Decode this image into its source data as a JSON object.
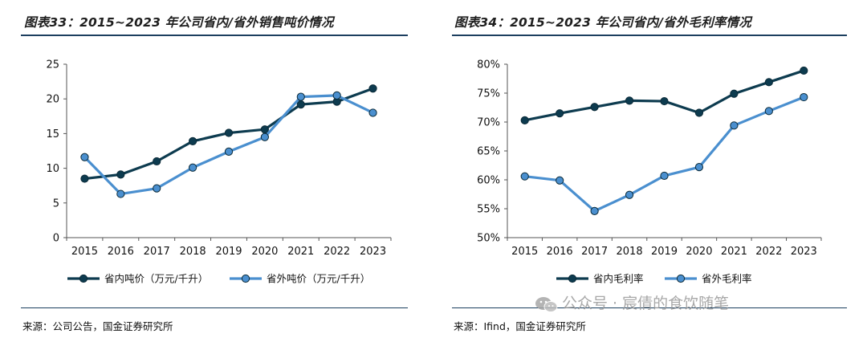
{
  "left": {
    "title": "图表33：2015~2023 年公司省内/省外销售吨价情况",
    "source": "来源：公司公告，国金证券研究所"
  },
  "right": {
    "title": "图表34：2015~2023 年公司省内/省外毛利率情况",
    "source": "来源：Ifind，国金证券研究所"
  },
  "watermark": "公众号 · 宸倩的食饮随笔",
  "colors": {
    "dark": "#0d3b4f",
    "light": "#4a8fcf",
    "axis": "#555555"
  },
  "chart_data": [
    {
      "id": "chart-left",
      "type": "line",
      "title": "2015~2023 年公司省内/省外销售吨价情况",
      "categories": [
        "2015",
        "2016",
        "2017",
        "2018",
        "2019",
        "2020",
        "2021",
        "2022",
        "2023"
      ],
      "ylim": [
        0,
        25
      ],
      "yticks": [
        0,
        5,
        10,
        15,
        20,
        25
      ],
      "ytick_labels": [
        "0",
        "5",
        "10",
        "15",
        "20",
        "25"
      ],
      "legend_position": "bottom",
      "series": [
        {
          "name": "省内吨价（万元/千升）",
          "color": "#0d3b4f",
          "values": [
            8.5,
            9.1,
            11.0,
            13.9,
            15.1,
            15.6,
            19.2,
            19.6,
            21.5
          ]
        },
        {
          "name": "省外吨价（万元/千升）",
          "color": "#4a8fcf",
          "values": [
            11.6,
            6.3,
            7.1,
            10.1,
            12.4,
            14.5,
            20.3,
            20.5,
            18.0
          ]
        }
      ]
    },
    {
      "id": "chart-right",
      "type": "line",
      "title": "2015~2023 年公司省内/省外毛利率情况",
      "categories": [
        "2015",
        "2016",
        "2017",
        "2018",
        "2019",
        "2020",
        "2021",
        "2022",
        "2023"
      ],
      "ylim": [
        50,
        80
      ],
      "yticks": [
        50,
        55,
        60,
        65,
        70,
        75,
        80
      ],
      "ytick_labels": [
        "50%",
        "55%",
        "60%",
        "65%",
        "70%",
        "75%",
        "80%"
      ],
      "legend_position": "bottom",
      "series": [
        {
          "name": "省内毛利率",
          "color": "#0d3b4f",
          "values": [
            70.3,
            71.5,
            72.6,
            73.7,
            73.6,
            71.6,
            74.9,
            76.9,
            78.9
          ]
        },
        {
          "name": "省外毛利率",
          "color": "#4a8fcf",
          "values": [
            60.6,
            59.9,
            54.6,
            57.4,
            60.7,
            62.2,
            69.4,
            71.9,
            74.3
          ]
        }
      ]
    }
  ]
}
